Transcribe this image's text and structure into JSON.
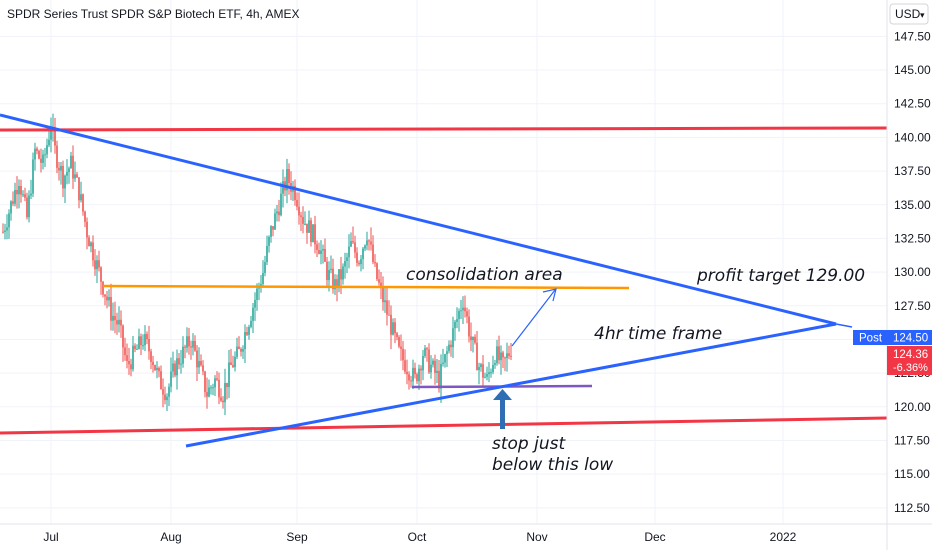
{
  "chart_data": {
    "type": "candlestick",
    "title": "SPDR Series Trust SPDR S&P Biotech ETF, 4h, AMEX",
    "currency": "USD",
    "price_axis": {
      "ticks": [
        "147.50",
        "145.00",
        "142.50",
        "140.00",
        "137.50",
        "135.00",
        "132.50",
        "130.00",
        "127.50",
        "125.00",
        "122.50",
        "120.00",
        "117.50",
        "115.00",
        "112.50"
      ],
      "range": [
        111.3,
        150.2
      ]
    },
    "time_axis": {
      "labels": [
        "Jul",
        "Aug",
        "Sep",
        "Oct",
        "Nov",
        "Dec",
        "2022"
      ]
    },
    "series_colors": {
      "up": "#26a69a",
      "down": "#ef5350"
    },
    "price_path": [
      [
        0,
        133
      ],
      [
        4,
        135
      ],
      [
        8,
        137
      ],
      [
        12,
        134
      ],
      [
        16,
        139
      ],
      [
        20,
        138
      ],
      [
        24,
        141
      ],
      [
        26,
        139
      ],
      [
        30,
        137
      ],
      [
        34,
        138
      ],
      [
        38,
        136
      ],
      [
        42,
        133
      ],
      [
        46,
        131
      ],
      [
        50,
        129
      ],
      [
        54,
        127
      ],
      [
        58,
        126
      ],
      [
        62,
        123
      ],
      [
        66,
        124
      ],
      [
        70,
        125
      ],
      [
        74,
        124
      ],
      [
        78,
        122
      ],
      [
        82,
        121
      ],
      [
        86,
        123
      ],
      [
        90,
        124
      ],
      [
        94,
        125
      ],
      [
        98,
        123
      ],
      [
        102,
        121
      ],
      [
        106,
        122
      ],
      [
        110,
        121
      ],
      [
        114,
        123
      ],
      [
        118,
        124
      ],
      [
        122,
        126
      ],
      [
        126,
        128
      ],
      [
        130,
        130
      ],
      [
        134,
        133
      ],
      [
        138,
        135
      ],
      [
        142,
        137
      ],
      [
        146,
        136
      ],
      [
        150,
        134
      ],
      [
        154,
        133
      ],
      [
        158,
        132
      ],
      [
        162,
        130
      ],
      [
        166,
        129
      ],
      [
        170,
        130
      ],
      [
        174,
        132
      ],
      [
        178,
        131
      ],
      [
        182,
        133
      ],
      [
        186,
        130
      ],
      [
        190,
        128
      ],
      [
        194,
        126
      ],
      [
        198,
        124
      ],
      [
        202,
        123
      ],
      [
        206,
        122
      ],
      [
        210,
        124
      ],
      [
        214,
        123
      ],
      [
        218,
        122
      ],
      [
        222,
        124
      ],
      [
        226,
        126
      ],
      [
        230,
        128
      ],
      [
        234,
        125
      ],
      [
        238,
        123
      ],
      [
        242,
        122
      ],
      [
        246,
        124
      ],
      [
        250,
        123
      ],
      [
        254,
        124.36
      ]
    ],
    "price_lines": [
      {
        "label": "Post",
        "value": "124.50",
        "color": "#2962ff"
      },
      {
        "label": "124.36",
        "value": "124.36",
        "change": "-6.36%",
        "color": "#f23645"
      }
    ],
    "annotations": [
      {
        "text": "consolidation area"
      },
      {
        "text": "profit target 129.00"
      },
      {
        "text": "4hr time frame"
      },
      {
        "text": "stop just"
      },
      {
        "text": "below this low"
      }
    ],
    "drawings": [
      {
        "kind": "horizontal-line",
        "color": "#f23645",
        "value": 141.3
      },
      {
        "kind": "horizontal-line",
        "color": "#f23645",
        "value": 118.4
      },
      {
        "kind": "horizontal-line",
        "color": "#ff9800",
        "value": 129.3
      },
      {
        "kind": "horizontal-line",
        "color": "#7e57c2",
        "value": 121.8
      },
      {
        "kind": "trend-line",
        "color": "#2962ff",
        "from": "upper",
        "to": "apex"
      },
      {
        "kind": "trend-line",
        "color": "#2962ff",
        "from": "lower",
        "to": "apex"
      }
    ],
    "grid": true
  }
}
